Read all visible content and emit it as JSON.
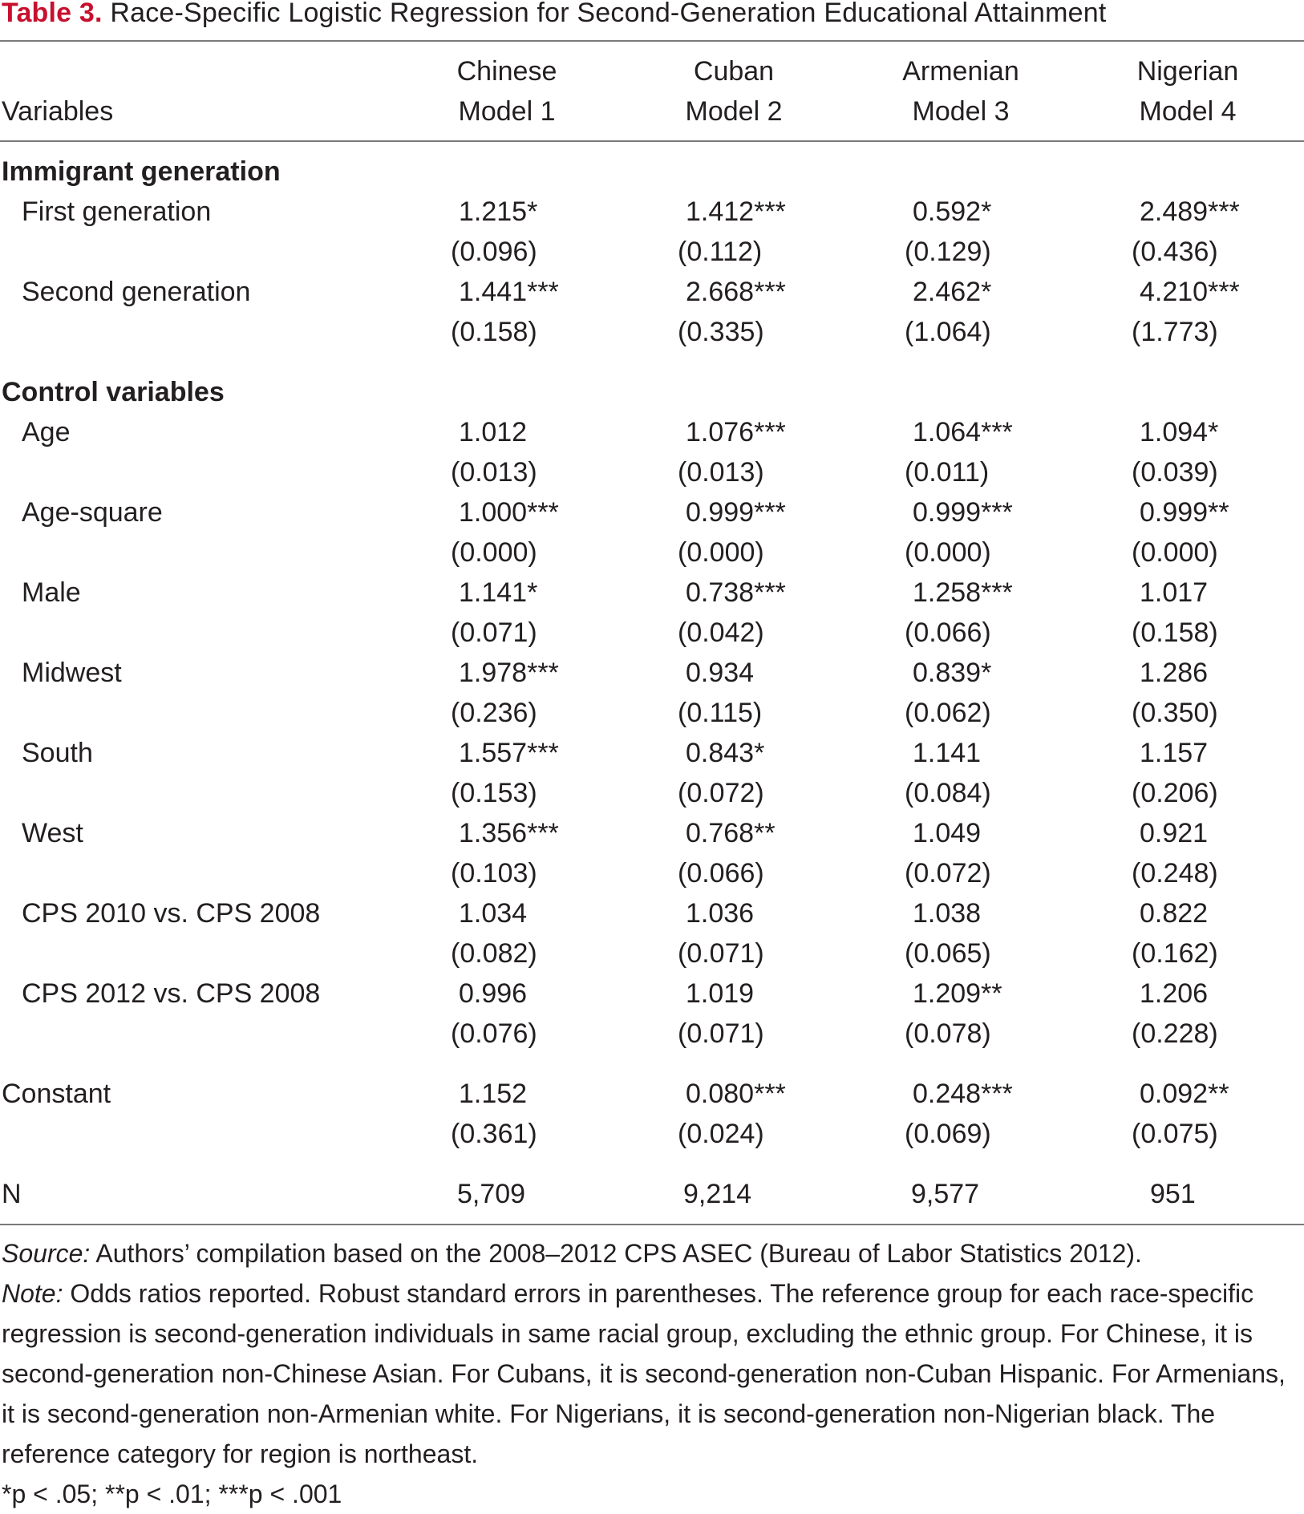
{
  "caption": {
    "label": "Table 3.",
    "title": "Race-Specific Logistic Regression for Second-Generation Educational Attainment"
  },
  "header": {
    "variables_label": "Variables",
    "columns": [
      {
        "group": "Chinese",
        "model": "Model 1"
      },
      {
        "group": "Cuban",
        "model": "Model 2"
      },
      {
        "group": "Armenian",
        "model": "Model 3"
      },
      {
        "group": "Nigerian",
        "model": "Model 4"
      }
    ]
  },
  "sections": {
    "immigrant": "Immigrant generation",
    "control": "Control variables"
  },
  "rows": {
    "first_gen": {
      "label": "First generation",
      "coefs": [
        "1.215*",
        "1.412***",
        "0.592*",
        "2.489***"
      ],
      "ses": [
        "(0.096)",
        "(0.112)",
        "(0.129)",
        "(0.436)"
      ]
    },
    "second_gen": {
      "label": "Second generation",
      "coefs": [
        "1.441***",
        "2.668***",
        "2.462*",
        "4.210***"
      ],
      "ses": [
        "(0.158)",
        "(0.335)",
        "(1.064)",
        "(1.773)"
      ]
    },
    "age": {
      "label": "Age",
      "coefs": [
        "1.012",
        "1.076***",
        "1.064***",
        "1.094*"
      ],
      "ses": [
        "(0.013)",
        "(0.013)",
        "(0.011)",
        "(0.039)"
      ]
    },
    "age_square": {
      "label": "Age-square",
      "coefs": [
        "1.000***",
        "0.999***",
        "0.999***",
        "0.999**"
      ],
      "ses": [
        "(0.000)",
        "(0.000)",
        "(0.000)",
        "(0.000)"
      ]
    },
    "male": {
      "label": "Male",
      "coefs": [
        "1.141*",
        "0.738***",
        "1.258***",
        "1.017"
      ],
      "ses": [
        "(0.071)",
        "(0.042)",
        "(0.066)",
        "(0.158)"
      ]
    },
    "midwest": {
      "label": "Midwest",
      "coefs": [
        "1.978***",
        "0.934",
        "0.839*",
        "1.286"
      ],
      "ses": [
        "(0.236)",
        "(0.115)",
        "(0.062)",
        "(0.350)"
      ]
    },
    "south": {
      "label": "South",
      "coefs": [
        "1.557***",
        "0.843*",
        "1.141",
        "1.157"
      ],
      "ses": [
        "(0.153)",
        "(0.072)",
        "(0.084)",
        "(0.206)"
      ]
    },
    "west": {
      "label": "West",
      "coefs": [
        "1.356***",
        "0.768**",
        "1.049",
        "0.921"
      ],
      "ses": [
        "(0.103)",
        "(0.066)",
        "(0.072)",
        "(0.248)"
      ]
    },
    "cps2010": {
      "label": "CPS 2010 vs. CPS 2008",
      "coefs": [
        "1.034",
        "1.036",
        "1.038",
        "0.822"
      ],
      "ses": [
        "(0.082)",
        "(0.071)",
        "(0.065)",
        "(0.162)"
      ]
    },
    "cps2012": {
      "label": "CPS 2012 vs. CPS 2008",
      "coefs": [
        "0.996",
        "1.019",
        "1.209**",
        "1.206"
      ],
      "ses": [
        "(0.076)",
        "(0.071)",
        "(0.078)",
        "(0.228)"
      ]
    },
    "constant": {
      "label": "Constant",
      "coefs": [
        "1.152",
        "0.080***",
        "0.248***",
        "0.092**"
      ],
      "ses": [
        "(0.361)",
        "(0.024)",
        "(0.069)",
        "(0.075)"
      ]
    },
    "n": {
      "label": "N",
      "values": [
        "5,709",
        "9,214",
        "9,577",
        "951"
      ]
    }
  },
  "notes": {
    "source_label": "Source:",
    "source_text": " Authors’ compilation based on the 2008–2012 CPS ASEC (Bureau of Labor Statistics 2012).",
    "note_label": "Note:",
    "note_text": " Odds ratios reported. Robust standard errors in parentheses. The reference group for each race-specific regression is second-generation individuals in same racial group, excluding the ethnic group. For Chinese, it is second-generation non-Chinese Asian. For Cubans, it is second-generation non-Cuban Hispanic. For Armenians, it is second-generation non-Armenian white. For Nigerians, it is second-generation non-Nigerian black. The reference category for region is northeast.",
    "sig": "*p < .05; **p < .01; ***p < .001"
  }
}
